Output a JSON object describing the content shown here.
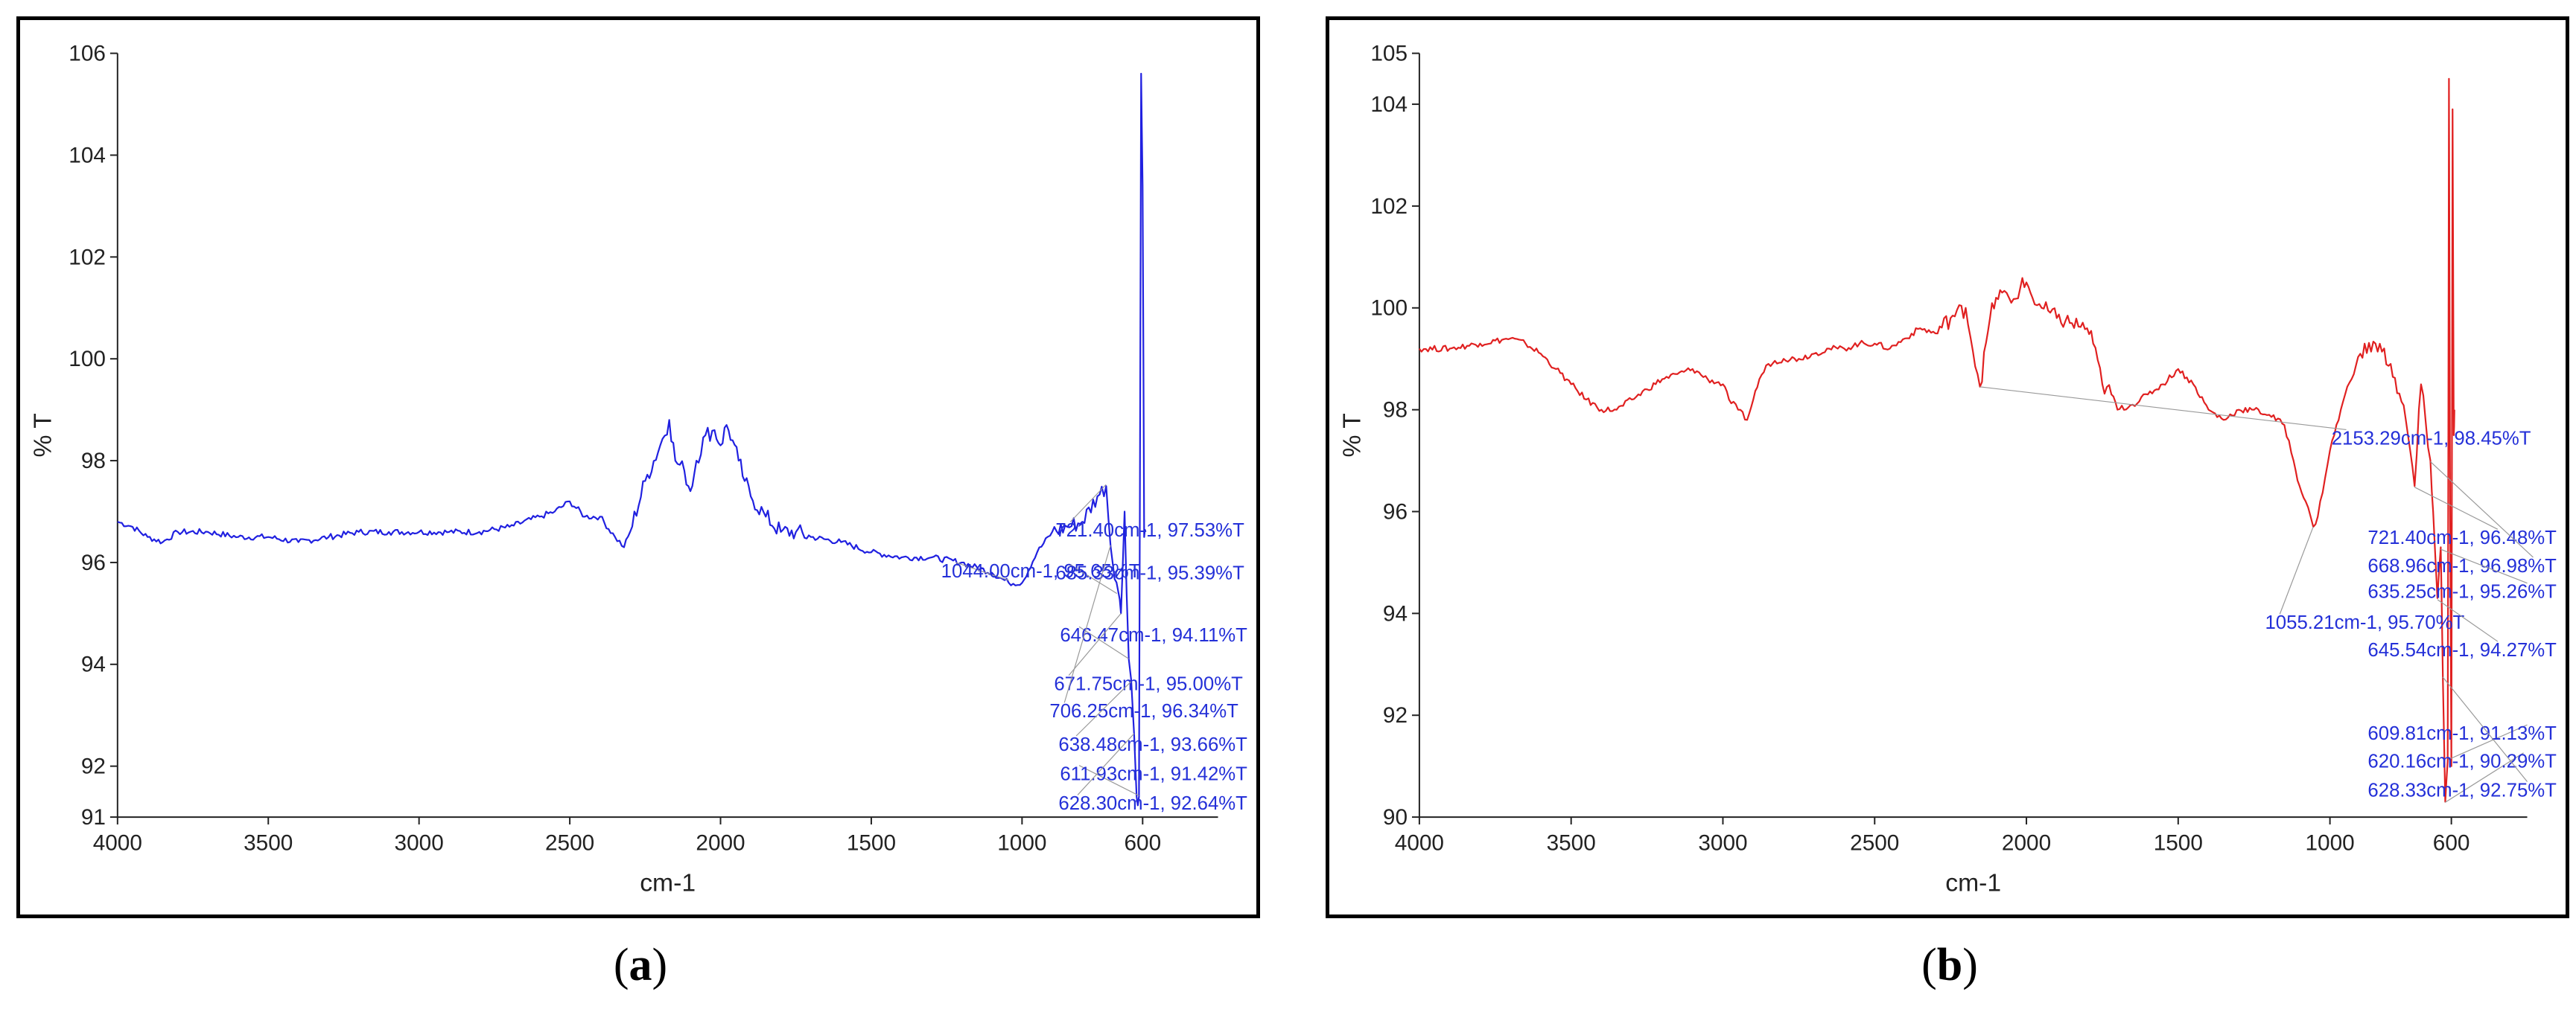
{
  "chart_data": [
    {
      "id": "a",
      "type": "line",
      "panel_label": "a",
      "xlabel": "cm-1",
      "ylabel": "% T",
      "xlim": [
        4000,
        350
      ],
      "ylim": [
        91,
        106
      ],
      "xticks": [
        "4000",
        "3500",
        "3000",
        "2500",
        "2000",
        "1500",
        "1000",
        "600"
      ],
      "yticks": [
        "91",
        "92",
        "94",
        "96",
        "98",
        "100",
        "102",
        "104",
        "106"
      ],
      "line_color": "#2020e0",
      "annotation_color": "#2430d8",
      "series": [
        {
          "x": [
            4000,
            3950,
            3900,
            3850,
            3800,
            3700,
            3600,
            3500,
            3400,
            3300,
            3200,
            3100,
            3000,
            2900,
            2800,
            2700,
            2600,
            2550,
            2500,
            2450,
            2400,
            2350,
            2320,
            2300,
            2250,
            2200,
            2170,
            2150,
            2120,
            2100,
            2080,
            2050,
            2020,
            2000,
            1980,
            1960,
            1940,
            1920,
            1900,
            1850,
            1800,
            1750,
            1700,
            1600,
            1500,
            1400,
            1300,
            1200,
            1100,
            1044,
            1000,
            950,
            900,
            850,
            800,
            750,
            721,
            706,
            680,
            672,
            660,
            646,
            638,
            628,
            620,
            612,
            605,
            600,
            595,
            590
          ],
          "y": [
            96.8,
            96.7,
            96.5,
            96.4,
            96.6,
            96.6,
            96.5,
            96.5,
            96.4,
            96.5,
            96.6,
            96.6,
            96.6,
            96.6,
            96.6,
            96.7,
            96.9,
            97.0,
            97.2,
            96.9,
            96.9,
            96.5,
            96.3,
            96.6,
            97.6,
            98.3,
            98.8,
            98.0,
            97.8,
            97.4,
            98.0,
            98.5,
            98.6,
            98.3,
            98.7,
            98.4,
            98.0,
            97.6,
            97.3,
            96.9,
            96.6,
            96.6,
            96.5,
            96.4,
            96.2,
            96.1,
            96.1,
            96.0,
            95.8,
            95.6,
            95.6,
            96.2,
            96.6,
            96.7,
            96.8,
            97.3,
            97.5,
            96.3,
            95.4,
            95.0,
            97.0,
            94.1,
            93.7,
            92.6,
            91.4,
            91.4,
            105.6,
            103.4,
            96.5,
            96.6
          ]
        }
      ],
      "annotations": [
        {
          "text": "721.40cm-1, 97.53%T",
          "x": 721.4,
          "y": 97.53
        },
        {
          "text": "1044.00cm-1, 95.65%T",
          "x": 1044.0,
          "y": 95.65
        },
        {
          "text": "685.33cm-1, 95.39%T",
          "x": 685.33,
          "y": 95.39
        },
        {
          "text": "646.47cm-1, 94.11%T",
          "x": 646.47,
          "y": 94.11
        },
        {
          "text": "671.75cm-1, 95.00%T",
          "x": 671.75,
          "y": 95.0
        },
        {
          "text": "706.25cm-1, 96.34%T",
          "x": 706.25,
          "y": 96.34
        },
        {
          "text": "638.48cm-1, 93.66%T",
          "x": 638.48,
          "y": 93.66
        },
        {
          "text": "611.93cm-1, 91.42%T",
          "x": 611.93,
          "y": 91.42
        },
        {
          "text": "628.30cm-1, 92.64%T",
          "x": 628.3,
          "y": 92.64
        }
      ]
    },
    {
      "id": "b",
      "type": "line",
      "panel_label": "b",
      "xlabel": "cm-1",
      "ylabel": "% T",
      "xlim": [
        4000,
        350
      ],
      "ylim": [
        90,
        105
      ],
      "xticks": [
        "4000",
        "3500",
        "3000",
        "2500",
        "2000",
        "1500",
        "1000",
        "600"
      ],
      "yticks": [
        "90",
        "92",
        "94",
        "96",
        "98",
        "100",
        "102",
        "104",
        "105"
      ],
      "line_color": "#e02020",
      "annotation_color": "#2430d8",
      "series": [
        {
          "x": [
            4000,
            3900,
            3800,
            3700,
            3650,
            3600,
            3550,
            3500,
            3450,
            3400,
            3350,
            3300,
            3250,
            3200,
            3150,
            3100,
            3050,
            3000,
            2980,
            2950,
            2920,
            2900,
            2880,
            2850,
            2800,
            2750,
            2700,
            2650,
            2600,
            2550,
            2500,
            2450,
            2400,
            2350,
            2300,
            2250,
            2200,
            2153,
            2120,
            2100,
            2080,
            2050,
            2020,
            2000,
            1980,
            1950,
            1900,
            1850,
            1800,
            1780,
            1750,
            1720,
            1700,
            1650,
            1600,
            1550,
            1500,
            1450,
            1400,
            1350,
            1300,
            1250,
            1200,
            1150,
            1120,
            1100,
            1080,
            1055,
            1040,
            1000,
            950,
            900,
            850,
            800,
            750,
            721,
            700,
            669,
            660,
            646,
            635,
            628,
            620,
            612,
            608,
            604,
            600,
            596,
            592,
            590
          ],
          "y": [
            99.2,
            99.2,
            99.3,
            99.4,
            99.3,
            99.1,
            98.8,
            98.5,
            98.2,
            98.0,
            98.0,
            98.2,
            98.4,
            98.6,
            98.7,
            98.8,
            98.6,
            98.5,
            98.2,
            98.0,
            97.8,
            98.2,
            98.6,
            98.9,
            99.0,
            99.0,
            99.1,
            99.2,
            99.2,
            99.3,
            99.3,
            99.2,
            99.4,
            99.6,
            99.5,
            99.8,
            100.0,
            98.45,
            99.8,
            100.2,
            100.3,
            100.1,
            100.4,
            100.5,
            100.2,
            100.0,
            99.8,
            99.7,
            99.6,
            99.3,
            98.5,
            98.3,
            98.0,
            98.1,
            98.3,
            98.5,
            98.8,
            98.5,
            98.0,
            97.8,
            98.0,
            98.0,
            97.9,
            97.7,
            97.0,
            96.5,
            96.2,
            95.7,
            95.9,
            97.2,
            98.3,
            99.1,
            99.3,
            98.9,
            97.8,
            96.5,
            98.5,
            97.0,
            96.0,
            94.3,
            95.3,
            92.7,
            90.3,
            91.1,
            104.5,
            96.0,
            91.0,
            103.9,
            97.5,
            98.0
          ]
        }
      ],
      "annotations": [
        {
          "text": "2153.29cm-1, 98.45%T",
          "x": 2153.29,
          "y": 98.45
        },
        {
          "text": "721.40cm-1, 96.48%T",
          "x": 721.4,
          "y": 96.48
        },
        {
          "text": "668.96cm-1, 96.98%T",
          "x": 668.96,
          "y": 96.98
        },
        {
          "text": "635.25cm-1, 95.26%T",
          "x": 635.25,
          "y": 95.26
        },
        {
          "text": "1055.21cm-1, 95.70%T",
          "x": 1055.21,
          "y": 95.7
        },
        {
          "text": "645.54cm-1, 94.27%T",
          "x": 645.54,
          "y": 94.27
        },
        {
          "text": "609.81cm-1, 91.13%T",
          "x": 609.81,
          "y": 91.13
        },
        {
          "text": "620.16cm-1, 90.29%T",
          "x": 620.16,
          "y": 90.29
        },
        {
          "text": "628.33cm-1, 92.75%T",
          "x": 628.33,
          "y": 92.75
        }
      ]
    }
  ]
}
